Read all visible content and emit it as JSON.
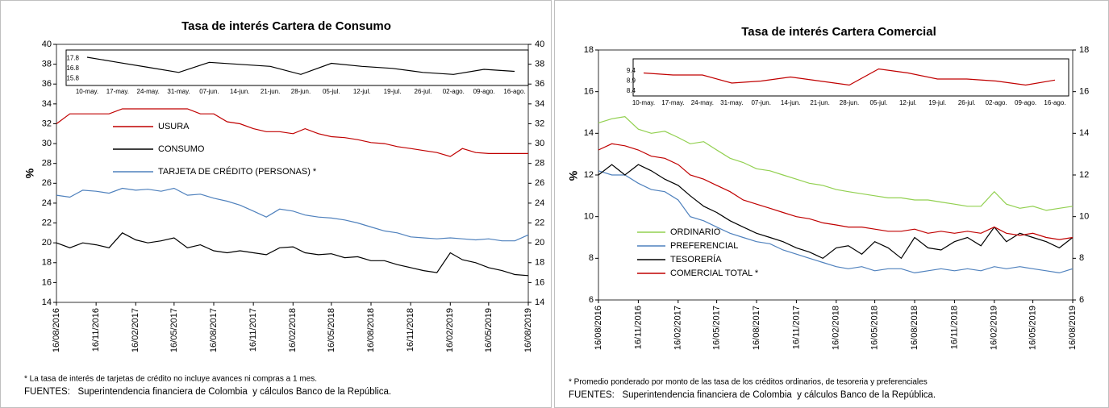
{
  "chart_data": [
    {
      "type": "line",
      "title": "Tasa de interés Cartera de Consumo",
      "ylabel": "%",
      "x": [
        "16/08/2016",
        "16/09/2016",
        "16/10/2016",
        "16/11/2016",
        "16/12/2016",
        "16/01/2017",
        "16/02/2017",
        "16/03/2017",
        "16/04/2017",
        "16/05/2017",
        "16/06/2017",
        "16/07/2017",
        "16/08/2017",
        "16/09/2017",
        "16/10/2017",
        "16/11/2017",
        "16/12/2017",
        "16/01/2018",
        "16/02/2018",
        "16/03/2018",
        "16/04/2018",
        "16/05/2018",
        "16/06/2018",
        "16/07/2018",
        "16/08/2018",
        "16/09/2018",
        "16/10/2018",
        "16/11/2018",
        "16/12/2018",
        "16/01/2019",
        "16/02/2019",
        "16/03/2019",
        "16/04/2019",
        "16/05/2019",
        "16/06/2019",
        "16/07/2019",
        "16/08/2019"
      ],
      "xlim": [
        "16/08/2016",
        "16/08/2019"
      ],
      "xticks": [
        "16/08/2016",
        "16/11/2016",
        "16/02/2017",
        "16/05/2017",
        "16/08/2017",
        "16/11/2017",
        "16/02/2018",
        "16/05/2018",
        "16/08/2018",
        "16/11/2018",
        "16/02/2019",
        "16/05/2019",
        "16/08/2019"
      ],
      "ylim": [
        14,
        40
      ],
      "yticks": [
        14,
        16,
        18,
        20,
        22,
        24,
        26,
        28,
        30,
        32,
        34,
        36,
        38,
        40
      ],
      "y2lim": [
        14,
        40
      ],
      "y2ticks": [
        14,
        16,
        18,
        20,
        22,
        24,
        26,
        28,
        30,
        32,
        34,
        36,
        38,
        40
      ],
      "series": [
        {
          "name": "USURA",
          "color": "#c00000",
          "values": [
            32,
            33,
            33,
            33,
            33,
            33.5,
            33.5,
            33.5,
            33.5,
            33.5,
            33.5,
            33,
            33,
            32.2,
            32,
            31.5,
            31.2,
            31.2,
            31,
            31.5,
            31,
            30.7,
            30.6,
            30.4,
            30.1,
            30,
            29.7,
            29.5,
            29.3,
            29.1,
            28.7,
            29.5,
            29.1,
            29,
            29,
            29,
            29
          ]
        },
        {
          "name": "CONSUMO",
          "color": "#000000",
          "values": [
            20,
            19.5,
            20,
            19.8,
            19.5,
            21,
            20.3,
            20,
            20.2,
            20.5,
            19.5,
            19.8,
            19.2,
            19,
            19.2,
            19,
            18.8,
            19.5,
            19.6,
            19,
            18.8,
            18.9,
            18.5,
            18.6,
            18.2,
            18.2,
            17.8,
            17.5,
            17.2,
            17,
            19,
            18.3,
            18,
            17.5,
            17.2,
            16.8,
            16.7
          ]
        },
        {
          "name": "TARJETA DE CRÉDITO (PERSONAS) *",
          "color": "#4f81bd",
          "values": [
            24.8,
            24.6,
            25.3,
            25.2,
            25,
            25.5,
            25.3,
            25.4,
            25.2,
            25.5,
            24.8,
            24.9,
            24.5,
            24.2,
            23.8,
            23.2,
            22.6,
            23.4,
            23.2,
            22.8,
            22.6,
            22.5,
            22.3,
            22,
            21.6,
            21.2,
            21,
            20.6,
            20.5,
            20.4,
            20.5,
            20.4,
            20.3,
            20.4,
            20.2,
            20.2,
            20.8
          ]
        }
      ],
      "note": "* La tasa de interés de tarjetas de crédito no incluye avances ni compras a 1 mes.",
      "source": "FUENTES:   Superintendencia financiera de Colombia  y cálculos Banco de la República."
    },
    {
      "type": "line",
      "title": "Tasa de interés Cartera Comercial",
      "ylabel": "%",
      "x": [
        "16/08/2016",
        "16/09/2016",
        "16/10/2016",
        "16/11/2016",
        "16/12/2016",
        "16/01/2017",
        "16/02/2017",
        "16/03/2017",
        "16/04/2017",
        "16/05/2017",
        "16/06/2017",
        "16/07/2017",
        "16/08/2017",
        "16/09/2017",
        "16/10/2017",
        "16/11/2017",
        "16/12/2017",
        "16/01/2018",
        "16/02/2018",
        "16/03/2018",
        "16/04/2018",
        "16/05/2018",
        "16/06/2018",
        "16/07/2018",
        "16/08/2018",
        "16/09/2018",
        "16/10/2018",
        "16/11/2018",
        "16/12/2018",
        "16/01/2019",
        "16/02/2019",
        "16/03/2019",
        "16/04/2019",
        "16/05/2019",
        "16/06/2019",
        "16/07/2019",
        "16/08/2019"
      ],
      "xlim": [
        "16/08/2016",
        "16/08/2019"
      ],
      "xticks": [
        "16/08/2016",
        "16/11/2016",
        "16/02/2017",
        "16/05/2017",
        "16/08/2017",
        "16/11/2017",
        "16/02/2018",
        "16/05/2018",
        "16/08/2018",
        "16/11/2018",
        "16/02/2019",
        "16/05/2019",
        "16/08/2019"
      ],
      "ylim": [
        6,
        18
      ],
      "yticks": [
        6,
        8,
        10,
        12,
        14,
        16,
        18
      ],
      "y2lim": [
        6,
        18
      ],
      "y2ticks": [
        6,
        8,
        10,
        12,
        14,
        16,
        18
      ],
      "series": [
        {
          "name": "ORDINARIO",
          "color": "#92d050",
          "values": [
            14.5,
            14.7,
            14.8,
            14.2,
            14.0,
            14.1,
            13.8,
            13.5,
            13.6,
            13.2,
            12.8,
            12.6,
            12.3,
            12.2,
            12.0,
            11.8,
            11.6,
            11.5,
            11.3,
            11.2,
            11.1,
            11,
            10.9,
            10.9,
            10.8,
            10.8,
            10.7,
            10.6,
            10.5,
            10.5,
            11.2,
            10.6,
            10.4,
            10.5,
            10.3,
            10.4,
            10.5
          ]
        },
        {
          "name": "PREFERENCIAL",
          "color": "#4f81bd",
          "values": [
            12.2,
            12.0,
            12.0,
            11.6,
            11.3,
            11.2,
            10.8,
            10.0,
            9.8,
            9.5,
            9.2,
            9.0,
            8.8,
            8.7,
            8.4,
            8.2,
            8.0,
            7.8,
            7.6,
            7.5,
            7.6,
            7.4,
            7.5,
            7.5,
            7.3,
            7.4,
            7.5,
            7.4,
            7.5,
            7.4,
            7.6,
            7.5,
            7.6,
            7.5,
            7.4,
            7.3,
            7.5
          ]
        },
        {
          "name": "TESORERÍA",
          "color": "#000000",
          "values": [
            12,
            12.5,
            12,
            12.5,
            12.2,
            11.8,
            11.5,
            11,
            10.5,
            10.2,
            9.8,
            9.5,
            9.2,
            9.0,
            8.8,
            8.5,
            8.3,
            8.0,
            8.5,
            8.6,
            8.2,
            8.8,
            8.5,
            8.0,
            9.0,
            8.5,
            8.4,
            8.8,
            9.0,
            8.6,
            9.5,
            8.8,
            9.2,
            9.0,
            8.8,
            8.5,
            9.0
          ]
        },
        {
          "name": "COMERCIAL TOTAL *",
          "color": "#c00000",
          "values": [
            13.2,
            13.5,
            13.4,
            13.2,
            12.9,
            12.8,
            12.5,
            12,
            11.8,
            11.5,
            11.2,
            10.8,
            10.6,
            10.4,
            10.2,
            10,
            9.9,
            9.7,
            9.6,
            9.5,
            9.5,
            9.4,
            9.3,
            9.3,
            9.4,
            9.2,
            9.3,
            9.2,
            9.3,
            9.2,
            9.5,
            9.2,
            9.1,
            9.2,
            9.0,
            8.9,
            9.0
          ]
        }
      ],
      "note": "* Promedio ponderado por monto de las tasa de los créditos ordinarios, de tesoreria y preferenciales",
      "source": "FUENTES:   Superintendencia financiera de Colombia  y cálculos Banco de la República."
    },
    {
      "type": "line",
      "categories": [
        "10-may.",
        "17-may.",
        "24-may.",
        "31-may.",
        "07-jun.",
        "14-jun.",
        "21-jun.",
        "28-jun.",
        "05-jul.",
        "12-jul.",
        "19-jul.",
        "26-jul.",
        "02-ago.",
        "09-ago.",
        "16-ago."
      ],
      "ylim": [
        15.5,
        18.3
      ],
      "yticks": [
        15.8,
        16.8,
        17.8
      ],
      "series": [
        {
          "color": "#000000",
          "values": [
            17.9,
            17.4,
            16.9,
            16.4,
            17.4,
            17.2,
            17.0,
            16.2,
            17.3,
            17.0,
            16.8,
            16.4,
            16.2,
            16.7,
            16.5
          ]
        }
      ]
    },
    {
      "type": "line",
      "categories": [
        "10-may.",
        "17-may.",
        "24-may.",
        "31-may.",
        "07-jun.",
        "14-jun.",
        "21-jun.",
        "28-jun.",
        "05-jul.",
        "12-jul.",
        "19-jul.",
        "26-jul.",
        "02-ago.",
        "09-ago.",
        "16-ago."
      ],
      "ylim": [
        8.4,
        9.8
      ],
      "yticks": [
        8.4,
        8.9,
        9.4
      ],
      "series": [
        {
          "color": "#c00000",
          "values": [
            9.3,
            9.2,
            9.2,
            8.8,
            8.9,
            9.1,
            8.9,
            8.7,
            9.5,
            9.3,
            9.0,
            9.0,
            8.9,
            8.7,
            8.95
          ]
        }
      ]
    }
  ]
}
